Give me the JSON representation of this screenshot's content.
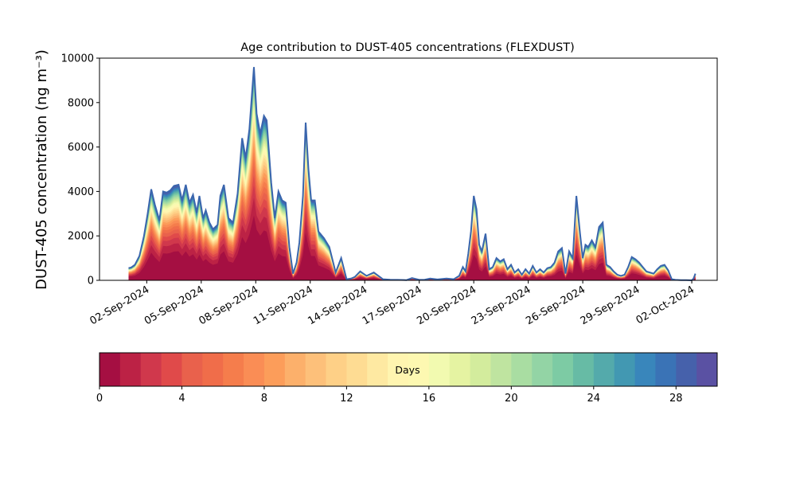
{
  "chart_data": {
    "type": "area",
    "title": "Age contribution to DUST-405 concentrations (FLEXDUST)",
    "ylabel": "DUST-405 concentration (ng m⁻³)",
    "xlabel": "",
    "ylim": [
      0,
      10000
    ],
    "yticks": [
      0,
      2000,
      4000,
      6000,
      8000,
      10000
    ],
    "xlim": [
      -1.6,
      32.4
    ],
    "xticks": [
      {
        "day": 1,
        "label": "02-Sep-2024"
      },
      {
        "day": 4,
        "label": "05-Sep-2024"
      },
      {
        "day": 7,
        "label": "08-Sep-2024"
      },
      {
        "day": 10,
        "label": "11-Sep-2024"
      },
      {
        "day": 13,
        "label": "14-Sep-2024"
      },
      {
        "day": 16,
        "label": "17-Sep-2024"
      },
      {
        "day": 19,
        "label": "20-Sep-2024"
      },
      {
        "day": 22,
        "label": "23-Sep-2024"
      },
      {
        "day": 25,
        "label": "26-Sep-2024"
      },
      {
        "day": 28,
        "label": "29-Sep-2024"
      },
      {
        "day": 31,
        "label": "02-Oct-2024"
      }
    ],
    "x_note_unit": "day index (0 = 01-Sep-2024)",
    "total_series": {
      "name": "total",
      "x": [
        0.0,
        0.15,
        0.35,
        0.6,
        0.85,
        1.05,
        1.25,
        1.45,
        1.7,
        1.9,
        2.1,
        2.3,
        2.5,
        2.75,
        2.95,
        3.15,
        3.35,
        3.55,
        3.75,
        3.9,
        4.1,
        4.25,
        4.45,
        4.65,
        4.9,
        5.05,
        5.25,
        5.5,
        5.75,
        6.0,
        6.25,
        6.45,
        6.65,
        6.9,
        7.05,
        7.25,
        7.45,
        7.6,
        7.85,
        8.05,
        8.25,
        8.45,
        8.65,
        8.85,
        9.05,
        9.25,
        9.4,
        9.6,
        9.75,
        9.9,
        10.05,
        10.25,
        10.45,
        10.75,
        11.05,
        11.4,
        11.7,
        12.0,
        12.25,
        12.45,
        12.75,
        13.1,
        13.5,
        14.0,
        14.4,
        14.8,
        15.3,
        15.6,
        16.0,
        16.3,
        16.6,
        17.0,
        17.5,
        17.9,
        18.2,
        18.4,
        18.55,
        18.7,
        18.85,
        19.0,
        19.15,
        19.3,
        19.45,
        19.65,
        19.85,
        20.05,
        20.25,
        20.45,
        20.65,
        20.85,
        21.05,
        21.25,
        21.45,
        21.65,
        21.85,
        22.05,
        22.25,
        22.45,
        22.65,
        22.85,
        23.05,
        23.25,
        23.45,
        23.65,
        23.85,
        24.05,
        24.25,
        24.45,
        24.65,
        24.85,
        25.0,
        25.15,
        25.3,
        25.5,
        25.7,
        25.9,
        26.1,
        26.3,
        26.5,
        26.7,
        26.9,
        27.1,
        27.3,
        27.5,
        27.7,
        27.9,
        28.1,
        28.3,
        28.5,
        28.7,
        28.9,
        29.1,
        29.3,
        29.5,
        29.7,
        29.9,
        30.1,
        30.4,
        30.7,
        31.0,
        31.1,
        31.2
      ],
      "values": [
        550,
        580,
        700,
        1100,
        2000,
        3000,
        4100,
        3400,
        2700,
        4000,
        3950,
        4050,
        4250,
        4300,
        3600,
        4300,
        3500,
        3850,
        3050,
        3800,
        2800,
        3150,
        2600,
        2300,
        2500,
        3800,
        4300,
        2800,
        2600,
        3900,
        6400,
        5500,
        6800,
        9600,
        7500,
        6600,
        7400,
        7200,
        4400,
        2800,
        4000,
        3600,
        3500,
        1500,
        300,
        800,
        1700,
        3800,
        7100,
        5000,
        3600,
        3600,
        2200,
        1900,
        1500,
        350,
        1000,
        50,
        80,
        150,
        400,
        200,
        350,
        50,
        30,
        20,
        10,
        100,
        20,
        30,
        80,
        40,
        80,
        50,
        200,
        600,
        400,
        1200,
        2200,
        3800,
        3200,
        1600,
        1300,
        2100,
        500,
        600,
        1000,
        850,
        950,
        500,
        700,
        350,
        500,
        250,
        500,
        300,
        650,
        350,
        500,
        350,
        550,
        600,
        800,
        1300,
        1450,
        300,
        1300,
        1000,
        3800,
        2100,
        1000,
        1600,
        1500,
        1800,
        1500,
        2400,
        2600,
        700,
        600,
        400,
        250,
        200,
        250,
        600,
        1050,
        950,
        800,
        600,
        400,
        350,
        300,
        500,
        650,
        700,
        450,
        50,
        20,
        10,
        10,
        0,
        80,
        300
      ]
    },
    "age_bins": {
      "count": 30,
      "min_days": 0,
      "max_days": 30,
      "colormap": "Spectral",
      "colors": [
        "#a50f42",
        "#bc2245",
        "#d0384c",
        "#e04a4a",
        "#e9614c",
        "#f06d4a",
        "#f57d4c",
        "#fa8d55",
        "#fc9d5a",
        "#fcb06b",
        "#fdc07a",
        "#fed087",
        "#fedc93",
        "#fee9a2",
        "#fff5b0",
        "#fdf8b1",
        "#f2fab0",
        "#e5f3a2",
        "#d3ec9d",
        "#bfe4a0",
        "#a9dda2",
        "#93d4a5",
        "#7dcba4",
        "#67bba5",
        "#54aaab",
        "#4298b2",
        "#3986bb",
        "#3a73b6",
        "#4661ab",
        "#5a51a3"
      ]
    },
    "colorbar": {
      "label": "Days",
      "ticks": [
        0,
        4,
        8,
        12,
        16,
        20,
        24,
        28
      ],
      "range": [
        0,
        30
      ]
    },
    "top_line_color": "#3a65ad",
    "grid": false,
    "legend": "none"
  }
}
